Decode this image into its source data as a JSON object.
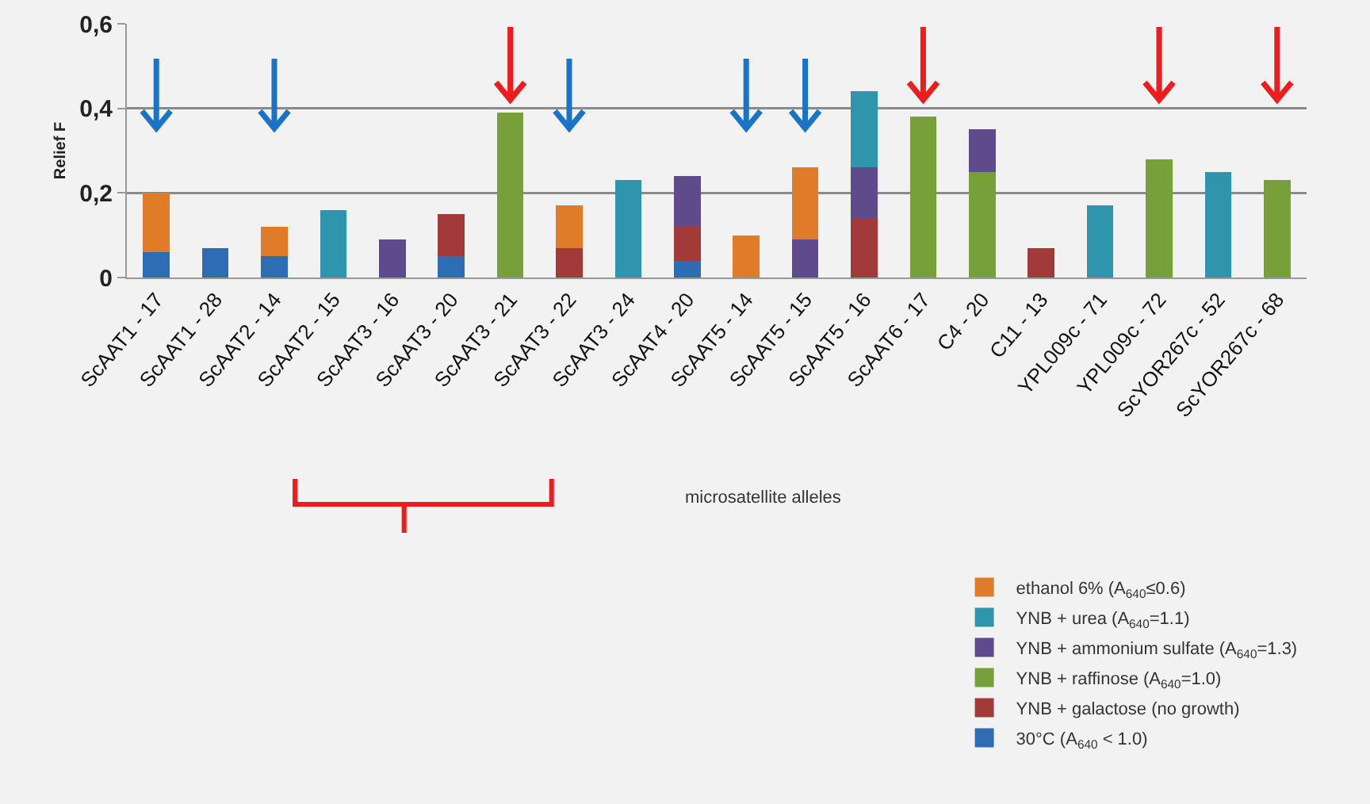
{
  "chart_data": {
    "type": "bar",
    "stacked": true,
    "ylabel": "Relief F",
    "xlabel": "microsatellite alleles",
    "categories": [
      "ScAAT1 - 17",
      "ScAAT1 - 28",
      "ScAAT2 - 14",
      "ScAAT2 - 15",
      "ScAAT3 - 16",
      "ScAAT3 - 20",
      "ScAAT3 - 21",
      "ScAAT3 - 22",
      "ScAAT3 - 24",
      "ScAAT4 - 20",
      "ScAAT5 - 14",
      "ScAAT5 - 15",
      "ScAAT5 - 16",
      "ScAAT6 - 17",
      "C4 - 20",
      "C11 - 13",
      "YPL009c - 71",
      "YPL009c - 72",
      "ScYOR267c - 52",
      "ScYOR267c - 68"
    ],
    "series": [
      {
        "name": "30°C (A$_{640}$ < 1.0)",
        "color": "#2e6db4",
        "values": [
          0.06,
          0.07,
          0.05,
          null,
          null,
          0.05,
          null,
          null,
          null,
          0.04,
          null,
          null,
          null,
          null,
          null,
          null,
          null,
          null,
          null,
          null
        ]
      },
      {
        "name": "YNB + galactose (no growth)",
        "color": "#a33a3a",
        "values": [
          null,
          null,
          null,
          null,
          null,
          0.1,
          null,
          0.07,
          null,
          0.08,
          null,
          null,
          0.14,
          null,
          null,
          0.07,
          null,
          null,
          null,
          null
        ]
      },
      {
        "name": "YNB + raffinose (A$_{640}$=1.0)",
        "color": "#77a03a",
        "values": [
          null,
          null,
          null,
          null,
          null,
          null,
          0.39,
          null,
          null,
          null,
          null,
          null,
          null,
          0.38,
          0.25,
          null,
          null,
          0.28,
          null,
          0.23
        ]
      },
      {
        "name": "YNB + ammonium sulfate (A$_{640}$=1.3)",
        "color": "#5f4a8b",
        "values": [
          null,
          null,
          null,
          null,
          0.09,
          null,
          null,
          null,
          null,
          0.12,
          null,
          0.09,
          0.12,
          null,
          0.1,
          null,
          null,
          null,
          null,
          null
        ]
      },
      {
        "name": "YNB + urea (A$_{640}$=1.1)",
        "color": "#2f95ac",
        "values": [
          null,
          null,
          null,
          0.16,
          null,
          null,
          null,
          null,
          0.23,
          null,
          null,
          null,
          0.18,
          null,
          null,
          null,
          0.17,
          null,
          0.25,
          null
        ]
      },
      {
        "name": "ethanol 6% (A$_{640}$≤0.6)",
        "color": "#e07b2a",
        "values": [
          0.14,
          null,
          0.07,
          null,
          null,
          null,
          null,
          0.1,
          null,
          null,
          0.1,
          0.17,
          null,
          null,
          null,
          null,
          null,
          null,
          null,
          null
        ]
      }
    ],
    "ylim": [
      0,
      0.6
    ],
    "yticks": [
      {
        "value": 0,
        "label": "0"
      },
      {
        "value": 0.2,
        "label": "0,2"
      },
      {
        "value": 0.4,
        "label": "0,4"
      },
      {
        "value": 0.6,
        "label": "0,6"
      }
    ],
    "grid": "y",
    "legend": "bottom right"
  }
}
